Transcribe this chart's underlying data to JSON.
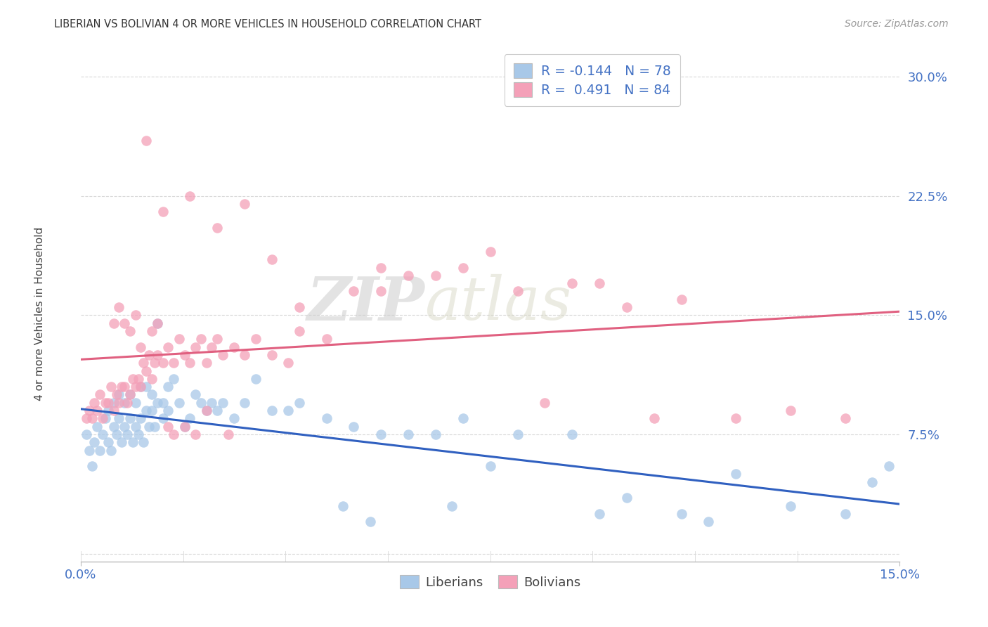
{
  "title": "LIBERIAN VS BOLIVIAN 4 OR MORE VEHICLES IN HOUSEHOLD CORRELATION CHART",
  "source": "Source: ZipAtlas.com",
  "ylabel": "4 or more Vehicles in Household",
  "xlim": [
    0.0,
    15.0
  ],
  "ylim": [
    -0.5,
    32.0
  ],
  "yticks": [
    0.0,
    7.5,
    15.0,
    22.5,
    30.0
  ],
  "ytick_labels": [
    "",
    "7.5%",
    "15.0%",
    "22.5%",
    "30.0%"
  ],
  "watermark_zip": "ZIP",
  "watermark_atlas": "atlas",
  "legend_blue_label": "R = -0.144   N = 78",
  "legend_pink_label": "R =  0.491   N = 84",
  "liberian_color": "#a8c8e8",
  "bolivian_color": "#f4a0b8",
  "liberian_line_color": "#3060c0",
  "bolivian_line_color": "#e06080",
  "axis_color": "#4472c4",
  "grid_color": "#d8d8d8",
  "liberian_x": [
    0.1,
    0.15,
    0.2,
    0.25,
    0.3,
    0.35,
    0.4,
    0.45,
    0.5,
    0.5,
    0.55,
    0.6,
    0.6,
    0.65,
    0.7,
    0.7,
    0.75,
    0.8,
    0.8,
    0.85,
    0.9,
    0.9,
    0.95,
    1.0,
    1.0,
    1.05,
    1.1,
    1.1,
    1.15,
    1.2,
    1.2,
    1.25,
    1.3,
    1.3,
    1.35,
    1.4,
    1.4,
    1.5,
    1.5,
    1.6,
    1.6,
    1.7,
    1.8,
    1.9,
    2.0,
    2.1,
    2.2,
    2.3,
    2.4,
    2.5,
    2.6,
    2.8,
    3.0,
    3.2,
    3.5,
    3.8,
    4.0,
    4.5,
    5.0,
    5.5,
    6.0,
    6.5,
    7.0,
    8.0,
    9.0,
    10.0,
    11.0,
    12.0,
    13.0,
    14.0,
    14.5,
    14.8,
    4.8,
    5.3,
    6.8,
    7.5,
    9.5,
    11.5
  ],
  "liberian_y": [
    7.5,
    6.5,
    5.5,
    7.0,
    8.0,
    6.5,
    7.5,
    8.5,
    7.0,
    9.0,
    6.5,
    8.0,
    9.5,
    7.5,
    8.5,
    10.0,
    7.0,
    8.0,
    9.5,
    7.5,
    8.5,
    10.0,
    7.0,
    8.0,
    9.5,
    7.5,
    8.5,
    10.5,
    7.0,
    9.0,
    10.5,
    8.0,
    9.0,
    10.0,
    8.0,
    9.5,
    14.5,
    8.5,
    9.5,
    9.0,
    10.5,
    11.0,
    9.5,
    8.0,
    8.5,
    10.0,
    9.5,
    9.0,
    9.5,
    9.0,
    9.5,
    8.5,
    9.5,
    11.0,
    9.0,
    9.0,
    9.5,
    8.5,
    8.0,
    7.5,
    7.5,
    7.5,
    8.5,
    7.5,
    7.5,
    3.5,
    2.5,
    5.0,
    3.0,
    2.5,
    4.5,
    5.5,
    3.0,
    2.0,
    3.0,
    5.5,
    2.5,
    2.0
  ],
  "bolivian_x": [
    0.1,
    0.15,
    0.2,
    0.25,
    0.3,
    0.35,
    0.4,
    0.45,
    0.5,
    0.55,
    0.6,
    0.65,
    0.7,
    0.75,
    0.8,
    0.85,
    0.9,
    0.95,
    1.0,
    1.05,
    1.1,
    1.15,
    1.2,
    1.25,
    1.3,
    1.35,
    1.4,
    1.5,
    1.6,
    1.7,
    1.8,
    1.9,
    2.0,
    2.1,
    2.2,
    2.3,
    2.4,
    2.5,
    2.6,
    2.8,
    3.0,
    3.2,
    3.5,
    3.8,
    4.0,
    4.5,
    5.0,
    5.5,
    6.0,
    7.0,
    8.0,
    9.0,
    10.0,
    11.0,
    12.0,
    13.0,
    14.0,
    1.2,
    1.5,
    2.0,
    2.5,
    3.0,
    3.5,
    4.0,
    5.5,
    6.5,
    7.5,
    8.5,
    9.5,
    10.5,
    0.6,
    0.7,
    0.8,
    0.9,
    1.0,
    1.1,
    1.3,
    1.4,
    1.6,
    1.7,
    1.9,
    2.1,
    2.3,
    2.7
  ],
  "bolivian_y": [
    8.5,
    9.0,
    8.5,
    9.5,
    9.0,
    10.0,
    8.5,
    9.5,
    9.5,
    10.5,
    9.0,
    10.0,
    9.5,
    10.5,
    10.5,
    9.5,
    10.0,
    11.0,
    10.5,
    11.0,
    10.5,
    12.0,
    11.5,
    12.5,
    11.0,
    12.0,
    12.5,
    12.0,
    13.0,
    12.0,
    13.5,
    12.5,
    12.0,
    13.0,
    13.5,
    12.0,
    13.0,
    13.5,
    12.5,
    13.0,
    12.5,
    13.5,
    12.5,
    12.0,
    14.0,
    13.5,
    16.5,
    18.0,
    17.5,
    18.0,
    16.5,
    17.0,
    15.5,
    16.0,
    8.5,
    9.0,
    8.5,
    26.0,
    21.5,
    22.5,
    20.5,
    22.0,
    18.5,
    15.5,
    16.5,
    17.5,
    19.0,
    9.5,
    17.0,
    8.5,
    14.5,
    15.5,
    14.5,
    14.0,
    15.0,
    13.0,
    14.0,
    14.5,
    8.0,
    7.5,
    8.0,
    7.5,
    9.0,
    7.5
  ]
}
